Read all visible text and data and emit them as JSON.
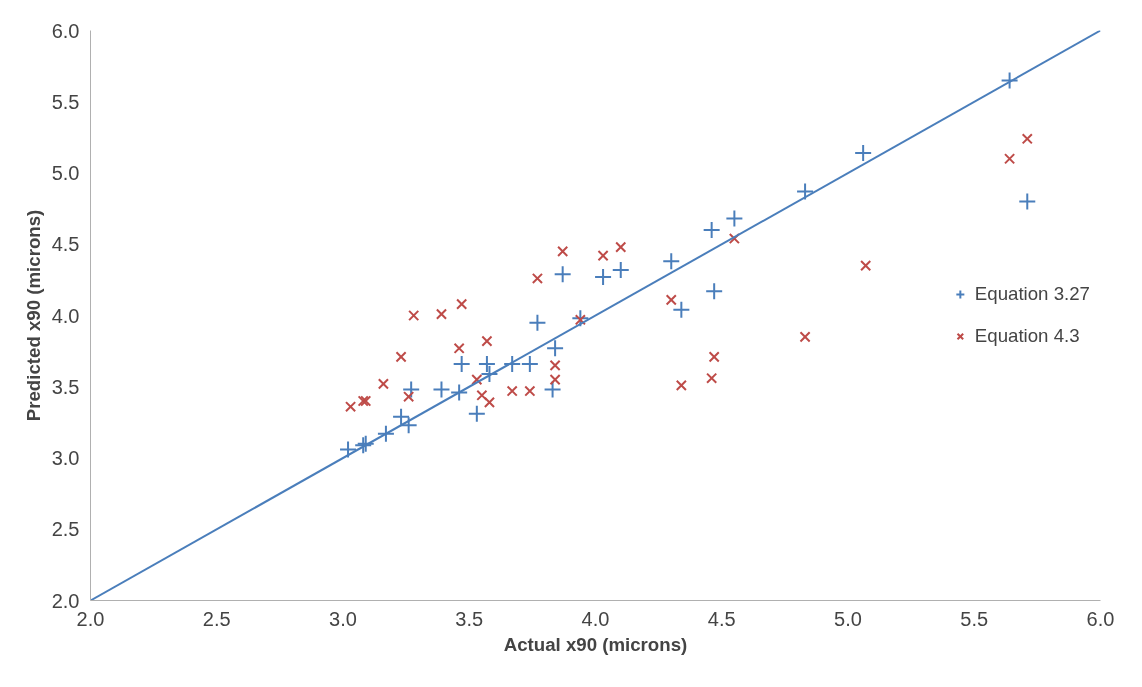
{
  "chart_data": {
    "type": "scatter",
    "xlabel": "Actual x90 (microns)",
    "ylabel": "Predicted x90 (microns)",
    "xlim": [
      2.0,
      6.0
    ],
    "ylim": [
      2.0,
      6.0
    ],
    "xticks": [
      {
        "value": 2,
        "label": "2.0"
      },
      {
        "value": 2.5,
        "label": "2.5"
      },
      {
        "value": 3,
        "label": "3.0"
      },
      {
        "value": 3.5,
        "label": "3.5"
      },
      {
        "value": 4,
        "label": "4.0"
      },
      {
        "value": 4.5,
        "label": "4.5"
      },
      {
        "value": 5,
        "label": "5.0"
      },
      {
        "value": 5.5,
        "label": "5.5"
      },
      {
        "value": 6,
        "label": "6.0"
      }
    ],
    "yticks": [
      {
        "value": 2,
        "label": "2.0"
      },
      {
        "value": 2.5,
        "label": "2.5"
      },
      {
        "value": 3,
        "label": "3.0"
      },
      {
        "value": 3.5,
        "label": "3.5"
      },
      {
        "value": 4,
        "label": "4.0"
      },
      {
        "value": 4.5,
        "label": "4.5"
      },
      {
        "value": 5,
        "label": "5.0"
      },
      {
        "value": 5.5,
        "label": "5.5"
      },
      {
        "value": 6,
        "label": "6.0"
      }
    ],
    "grid": false,
    "legend": "right",
    "series": [
      {
        "name": "Equation 3.27",
        "color": "#4a7ebb",
        "marker": "cross",
        "x": [
          3.02,
          3.08,
          3.09,
          3.17,
          3.23,
          3.26,
          3.27,
          3.39,
          3.47,
          3.46,
          3.53,
          3.57,
          3.58,
          3.67,
          3.74,
          3.77,
          3.84,
          3.83,
          3.87,
          3.94,
          4.03,
          4.1,
          4.3,
          4.34,
          4.46,
          4.55,
          4.47,
          4.83,
          5.06,
          5.64,
          5.71
        ],
        "values": [
          3.06,
          3.09,
          3.1,
          3.17,
          3.29,
          3.23,
          3.48,
          3.48,
          3.66,
          3.46,
          3.31,
          3.66,
          3.59,
          3.66,
          3.66,
          3.95,
          3.77,
          3.48,
          4.29,
          3.98,
          4.27,
          4.32,
          4.38,
          4.04,
          4.6,
          4.68,
          4.17,
          4.87,
          5.14,
          5.65,
          4.8
        ]
      },
      {
        "name": "Equation 4.3",
        "color": "#be4b48",
        "marker": "x",
        "x": [
          3.03,
          3.08,
          3.09,
          3.16,
          3.23,
          3.26,
          3.28,
          3.39,
          3.47,
          3.46,
          3.53,
          3.55,
          3.58,
          3.57,
          3.67,
          3.74,
          3.77,
          3.87,
          3.84,
          3.84,
          3.94,
          4.03,
          4.1,
          4.3,
          4.55,
          4.47,
          4.46,
          4.34,
          4.83,
          5.07,
          5.64,
          5.71
        ],
        "values": [
          3.36,
          3.4,
          3.4,
          3.52,
          3.71,
          3.43,
          4.0,
          4.01,
          4.08,
          3.77,
          3.55,
          3.44,
          3.39,
          3.82,
          3.47,
          3.47,
          4.26,
          4.45,
          3.65,
          3.55,
          3.97,
          4.42,
          4.48,
          4.11,
          4.54,
          3.71,
          3.56,
          3.51,
          3.85,
          4.35,
          5.1,
          5.24
        ]
      },
      {
        "type": "line",
        "color": "#4a7ebb",
        "line_style": "solid",
        "x": [
          2.0,
          6.0
        ],
        "values": [
          2.0,
          6.0
        ]
      }
    ]
  }
}
